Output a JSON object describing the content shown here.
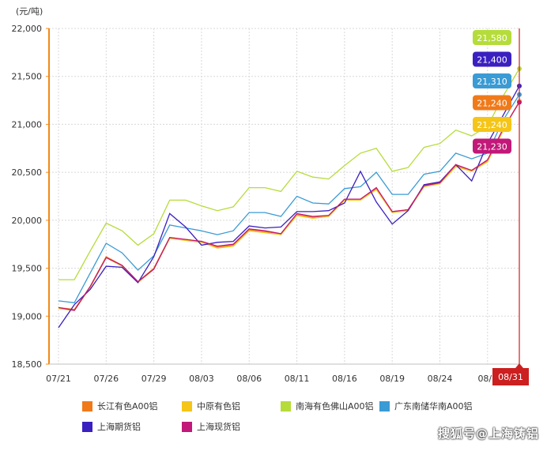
{
  "chart_data": {
    "type": "line",
    "unit_label": "(元/吨)",
    "ylim": [
      18500,
      22000
    ],
    "y_ticks": [
      "22,000",
      "21,500",
      "21,000",
      "20,500",
      "20,000",
      "19,500",
      "19,000",
      "18,500"
    ],
    "x": [
      "07/21",
      "07/22",
      "07/25",
      "07/26",
      "07/27",
      "07/28",
      "07/29",
      "08/01",
      "08/02",
      "08/03",
      "08/04",
      "08/05",
      "08/06",
      "08/09",
      "08/10",
      "08/11",
      "08/12",
      "08/15",
      "08/16",
      "08/17",
      "08/18",
      "08/19",
      "08/22",
      "08/23",
      "08/24",
      "08/25",
      "08/26",
      "08/29",
      "08/30",
      "08/31"
    ],
    "x_tick_labels": [
      {
        "i": 0,
        "label": "07/21"
      },
      {
        "i": 3,
        "label": "07/26"
      },
      {
        "i": 6,
        "label": "07/29"
      },
      {
        "i": 9,
        "label": "08/03"
      },
      {
        "i": 12,
        "label": "08/06"
      },
      {
        "i": 15,
        "label": "08/11"
      },
      {
        "i": 18,
        "label": "08/16"
      },
      {
        "i": 21,
        "label": "08/19"
      },
      {
        "i": 24,
        "label": "08/24"
      },
      {
        "i": 27,
        "label": "08/2"
      }
    ],
    "series": [
      {
        "name": "长江有色A00铝",
        "color": "#f07a1a",
        "values": [
          19090,
          19070,
          19310,
          19620,
          19530,
          19360,
          19500,
          19820,
          19800,
          19780,
          19720,
          19740,
          19900,
          19880,
          19860,
          20060,
          20030,
          20050,
          20220,
          20220,
          20330,
          20090,
          20110,
          20360,
          20390,
          20570,
          20520,
          20620,
          20950,
          21240
        ]
      },
      {
        "name": "中原有色铝",
        "color": "#f5c518",
        "values": [
          19080,
          19060,
          19300,
          19610,
          19520,
          19350,
          19490,
          19810,
          19790,
          19770,
          19710,
          19730,
          19890,
          19870,
          19850,
          20050,
          20020,
          20040,
          20210,
          20210,
          20320,
          20080,
          20100,
          20350,
          20380,
          20560,
          20510,
          20610,
          20940,
          21240
        ]
      },
      {
        "name": "南海有色佛山A00铝",
        "color": "#b5dc3a",
        "values": [
          19380,
          19380,
          19680,
          19970,
          19890,
          19740,
          19860,
          20210,
          20210,
          20150,
          20100,
          20140,
          20340,
          20340,
          20300,
          20510,
          20450,
          20430,
          20570,
          20700,
          20750,
          20510,
          20550,
          20760,
          20800,
          20940,
          20880,
          20980,
          21300,
          21580
        ]
      },
      {
        "name": "广东南储华南A00铝",
        "color": "#3a9bd5",
        "values": [
          19160,
          19140,
          19450,
          19760,
          19660,
          19480,
          19630,
          19950,
          19920,
          19890,
          19850,
          19890,
          20080,
          20080,
          20040,
          20250,
          20180,
          20170,
          20330,
          20350,
          20500,
          20270,
          20270,
          20480,
          20510,
          20700,
          20640,
          20700,
          21050,
          21310
        ]
      },
      {
        "name": "上海期货铝",
        "color": "#3b20c0",
        "values": [
          18880,
          19120,
          19280,
          19520,
          19510,
          19350,
          19620,
          20070,
          19930,
          19740,
          19770,
          19780,
          19940,
          19920,
          19930,
          20090,
          20090,
          20100,
          20180,
          20510,
          20190,
          19960,
          20100,
          20370,
          20400,
          20580,
          20410,
          20800,
          21100,
          21400
        ]
      },
      {
        "name": "上海现货铝",
        "color": "#c21879",
        "values": [
          19090,
          19060,
          19310,
          19610,
          19530,
          19360,
          19490,
          19820,
          19800,
          19780,
          19730,
          19750,
          19910,
          19890,
          19860,
          20070,
          20040,
          20050,
          20220,
          20220,
          20340,
          20090,
          20110,
          20360,
          20390,
          20580,
          20520,
          20630,
          20960,
          21230
        ]
      }
    ],
    "end_tags": [
      {
        "label": "21,580",
        "color": "#b5dc3a"
      },
      {
        "label": "21,400",
        "color": "#3b20c0"
      },
      {
        "label": "21,310",
        "color": "#3a9bd5"
      },
      {
        "label": "21,240",
        "color": "#f07a1a"
      },
      {
        "label": "21,240",
        "color": "#f5c518"
      },
      {
        "label": "21,230",
        "color": "#c21879"
      }
    ],
    "crosshair_label": "08/31",
    "grid": true
  },
  "watermark": "搜狐号@上海铸铝"
}
